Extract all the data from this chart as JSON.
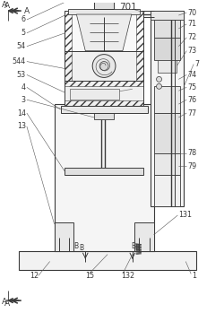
{
  "bg_color": "#ffffff",
  "line_color": "#3a3a3a",
  "labels_left": [
    "6",
    "5",
    "54",
    "544",
    "53",
    "4",
    "3",
    "14",
    "13"
  ],
  "labels_right": [
    "70",
    "71",
    "72",
    "73",
    "7",
    "74",
    "75",
    "76",
    "77",
    "78",
    "79"
  ],
  "labels_bottom": [
    "12",
    "15",
    "132",
    "1",
    "131"
  ],
  "label_701": "701",
  "label_A": "A",
  "label_B": "B"
}
